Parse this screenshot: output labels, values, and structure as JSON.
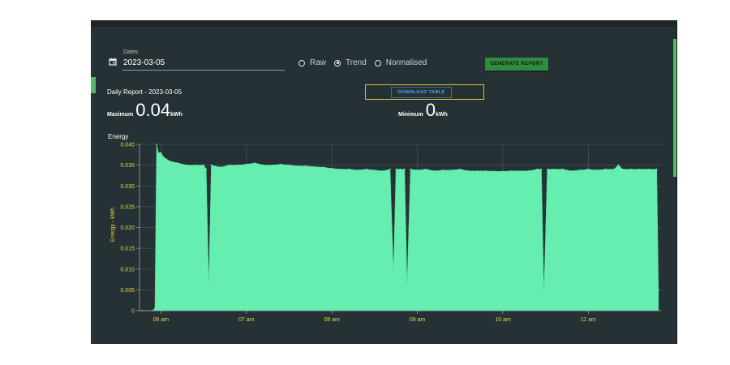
{
  "controls": {
    "dates_label": "Dates",
    "date_value": "2023-03-05",
    "radio_options": [
      {
        "label": "Raw",
        "selected": false
      },
      {
        "label": "Trend",
        "selected": true
      },
      {
        "label": "Normalised",
        "selected": false
      }
    ],
    "generate_button": "GENERATE REPORT",
    "download_button": "DOWNLOAD TABLE"
  },
  "report": {
    "title": "Daily Report - 2023-03-05",
    "maximum": {
      "label": "Maximum",
      "value": "0.04",
      "unit": "kWh"
    },
    "minimum": {
      "label": "Minimum",
      "value": "0",
      "unit": "kWh"
    }
  },
  "colors": {
    "panel": "#263135",
    "fill": "#66eeb0",
    "axis_text": "#e6d24a",
    "button": "#2e8b3f",
    "download": "#4aa3ff"
  },
  "icons": {
    "date": "calendar-icon"
  },
  "chart_data": {
    "type": "area",
    "title": "Energy",
    "ylabel": "Energy - kWh",
    "xlabel": "",
    "ylim": [
      0,
      0.04
    ],
    "xlim": [
      5.75,
      11.85
    ],
    "y_ticks": [
      0,
      0.005,
      0.01,
      0.015,
      0.02,
      0.025,
      0.03,
      0.035,
      0.04
    ],
    "y_tick_labels": [
      "0",
      "0.005",
      "0.010",
      "0.015",
      "0.020",
      "0.025",
      "0.030",
      "0.035",
      "0.040"
    ],
    "x_ticks": [
      6,
      7,
      8,
      9,
      10,
      11
    ],
    "x_tick_labels": [
      "06 am",
      "07 am",
      "08 am",
      "09 am",
      "10 am",
      "11 am"
    ],
    "grid": true,
    "series": [
      {
        "points": [
          [
            5.78,
            0
          ],
          [
            5.9,
            0
          ],
          [
            5.93,
            0.0005
          ],
          [
            5.95,
            0.04
          ],
          [
            5.97,
            0.038
          ],
          [
            6.0,
            0.038
          ],
          [
            6.03,
            0.037
          ],
          [
            6.1,
            0.036
          ],
          [
            6.2,
            0.0355
          ],
          [
            6.3,
            0.035
          ],
          [
            6.4,
            0.035
          ],
          [
            6.5,
            0.035
          ],
          [
            6.53,
            0.034
          ],
          [
            6.56,
            0.006
          ],
          [
            6.59,
            0.035
          ],
          [
            6.7,
            0.0345
          ],
          [
            6.8,
            0.035
          ],
          [
            6.9,
            0.035
          ],
          [
            7.0,
            0.0352
          ],
          [
            7.1,
            0.0355
          ],
          [
            7.2,
            0.035
          ],
          [
            7.3,
            0.035
          ],
          [
            7.4,
            0.0352
          ],
          [
            7.5,
            0.035
          ],
          [
            7.6,
            0.0348
          ],
          [
            7.7,
            0.0348
          ],
          [
            7.8,
            0.0346
          ],
          [
            7.9,
            0.0345
          ],
          [
            8.0,
            0.0342
          ],
          [
            8.1,
            0.034
          ],
          [
            8.2,
            0.034
          ],
          [
            8.3,
            0.0338
          ],
          [
            8.4,
            0.034
          ],
          [
            8.5,
            0.0338
          ],
          [
            8.6,
            0.0336
          ],
          [
            8.68,
            0.034
          ],
          [
            8.72,
            0.009
          ],
          [
            8.75,
            0.034
          ],
          [
            8.8,
            0.034
          ],
          [
            8.85,
            0.034
          ],
          [
            8.88,
            0.006
          ],
          [
            8.92,
            0.034
          ],
          [
            9.0,
            0.0338
          ],
          [
            9.1,
            0.034
          ],
          [
            9.2,
            0.0336
          ],
          [
            9.3,
            0.0338
          ],
          [
            9.4,
            0.0338
          ],
          [
            9.5,
            0.034
          ],
          [
            9.6,
            0.0336
          ],
          [
            9.7,
            0.0336
          ],
          [
            9.8,
            0.0336
          ],
          [
            9.9,
            0.0335
          ],
          [
            10.0,
            0.0335
          ],
          [
            10.1,
            0.0336
          ],
          [
            10.2,
            0.0336
          ],
          [
            10.3,
            0.0336
          ],
          [
            10.4,
            0.034
          ],
          [
            10.45,
            0.034
          ],
          [
            10.48,
            0.004
          ],
          [
            10.52,
            0.034
          ],
          [
            10.6,
            0.034
          ],
          [
            10.7,
            0.034
          ],
          [
            10.8,
            0.0336
          ],
          [
            10.9,
            0.0338
          ],
          [
            11.0,
            0.034
          ],
          [
            11.1,
            0.0338
          ],
          [
            11.2,
            0.034
          ],
          [
            11.3,
            0.034
          ],
          [
            11.35,
            0.035
          ],
          [
            11.4,
            0.034
          ],
          [
            11.5,
            0.034
          ],
          [
            11.6,
            0.034
          ],
          [
            11.7,
            0.034
          ],
          [
            11.8,
            0.034
          ],
          [
            11.82,
            0.005
          ]
        ]
      }
    ]
  }
}
